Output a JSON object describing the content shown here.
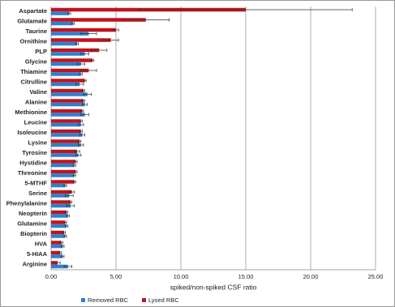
{
  "chart_data": {
    "type": "bar",
    "orientation": "horizontal",
    "x_label": "spiked/non-spiked CSF ratio",
    "categories": [
      "Aspartate",
      "Glutamate",
      "Taurine",
      "Ornithine",
      "PLP",
      "Glycine",
      "Thiamine",
      "Citrulline",
      "Valine",
      "Alanine",
      "Methionine",
      "Leucine",
      "Isoleucine",
      "Lysine",
      "Tyrosine",
      "Hystidine",
      "Threonine",
      "5-MTHF",
      "Serine",
      "Phenylalanine",
      "Neopterin",
      "Glutamine",
      "Biopterin",
      "HVA",
      "5-HIAA",
      "Arginine"
    ],
    "series": [
      {
        "name": "Removed RBC",
        "color": "#2e7fd0",
        "values": [
          1.4,
          1.7,
          2.9,
          2.0,
          2.6,
          2.3,
          2.3,
          2.2,
          2.8,
          2.6,
          2.6,
          2.3,
          2.4,
          2.3,
          2.1,
          1.8,
          1.8,
          1.1,
          1.4,
          1.5,
          1.3,
          1.2,
          1.1,
          0.9,
          0.9,
          1.3
        ],
        "errors": [
          0.1,
          0.1,
          0.6,
          0.1,
          0.3,
          0.3,
          0.1,
          0.3,
          0.3,
          0.2,
          0.3,
          0.2,
          0.2,
          0.2,
          0.2,
          0.1,
          0.1,
          0.1,
          0.3,
          0.3,
          0.1,
          0.1,
          0.1,
          0.1,
          0.1,
          0.3
        ]
      },
      {
        "name": "Lysed RBC",
        "color": "#c0141c",
        "values": [
          15.0,
          7.3,
          5.0,
          4.6,
          3.7,
          3.2,
          2.9,
          2.6,
          2.5,
          2.5,
          2.4,
          2.3,
          2.3,
          2.2,
          2.0,
          1.9,
          1.9,
          1.8,
          1.6,
          1.5,
          1.2,
          1.1,
          1.0,
          0.8,
          0.7,
          0.5
        ],
        "errors": [
          8.2,
          1.8,
          0.2,
          0.6,
          0.6,
          0.1,
          0.6,
          0.1,
          0.1,
          0.1,
          0.1,
          0.1,
          0.1,
          0.1,
          0.2,
          0.1,
          0.1,
          0.1,
          0.2,
          0.1,
          0.1,
          0.1,
          0.1,
          0.1,
          0.1,
          0.2
        ]
      }
    ],
    "xlim": [
      0,
      25
    ],
    "xticks": [
      {
        "value": 0,
        "label": "0.00"
      },
      {
        "value": 5,
        "label": "5.00"
      },
      {
        "value": 10,
        "label": "10.00"
      },
      {
        "value": 15,
        "label": "15.00"
      },
      {
        "value": 20,
        "label": "20.00"
      },
      {
        "value": 25,
        "label": "25.00"
      }
    ],
    "grid": true,
    "legend": "bottom"
  }
}
